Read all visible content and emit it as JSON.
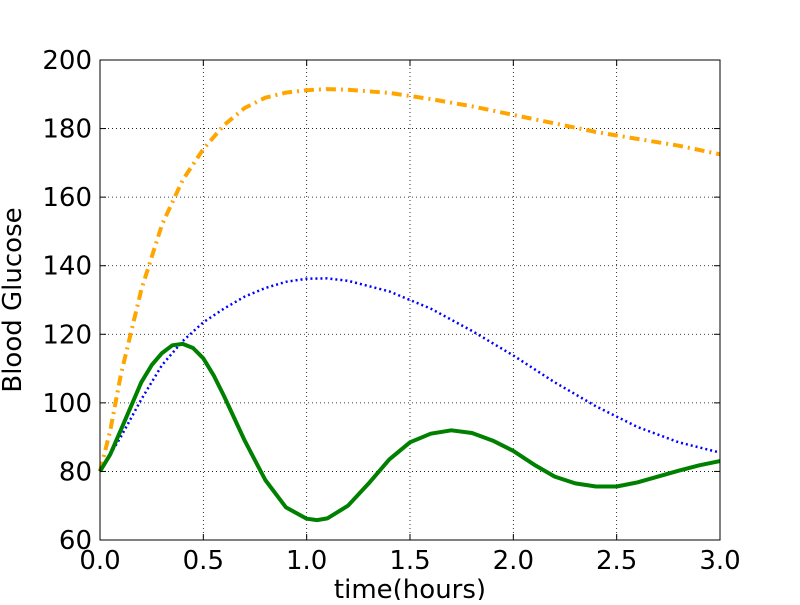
{
  "chart_data": {
    "type": "line",
    "title": "",
    "xlabel": "time(hours)",
    "ylabel": "Blood Glucose",
    "xlim": [
      0,
      3
    ],
    "ylim": [
      60,
      200
    ],
    "grid": true,
    "x_ticks": [
      0.0,
      0.5,
      1.0,
      1.5,
      2.0,
      2.5,
      3.0
    ],
    "x_tick_labels": [
      "0.0",
      "0.5",
      "1.0",
      "1.5",
      "2.0",
      "2.5",
      "3.0"
    ],
    "y_ticks": [
      60,
      80,
      100,
      120,
      140,
      160,
      180,
      200
    ],
    "y_tick_labels": [
      "60",
      "80",
      "100",
      "120",
      "140",
      "160",
      "180",
      "200"
    ],
    "series": [
      {
        "color": "#ffa500",
        "style": "dash-dot",
        "x": [
          0,
          0.05,
          0.1,
          0.2,
          0.3,
          0.4,
          0.5,
          0.6,
          0.7,
          0.8,
          0.9,
          1.0,
          1.1,
          1.2,
          1.4,
          1.6,
          1.8,
          2.0,
          2.2,
          2.4,
          2.6,
          2.8,
          3.0
        ],
        "values": [
          80,
          92,
          108,
          133,
          152,
          165,
          174,
          181,
          186,
          189,
          190.5,
          191.2,
          191.5,
          191.3,
          190.4,
          188.6,
          186.5,
          184,
          181.5,
          179,
          177,
          175,
          172.5
        ]
      },
      {
        "color": "#0000ff",
        "style": "dotted",
        "x": [
          0,
          0.1,
          0.2,
          0.3,
          0.4,
          0.5,
          0.6,
          0.7,
          0.8,
          0.9,
          1.0,
          1.1,
          1.2,
          1.4,
          1.6,
          1.8,
          2.0,
          2.2,
          2.4,
          2.6,
          2.8,
          3.0
        ],
        "values": [
          80,
          90,
          101,
          111,
          118,
          123.5,
          127.5,
          131,
          133.5,
          135.3,
          136.2,
          136.3,
          135.6,
          132.5,
          127.5,
          121,
          113.8,
          106,
          99,
          93,
          88.5,
          85.5
        ]
      },
      {
        "color": "#008000",
        "style": "solid",
        "x": [
          0,
          0.05,
          0.1,
          0.15,
          0.2,
          0.25,
          0.3,
          0.35,
          0.4,
          0.45,
          0.5,
          0.55,
          0.6,
          0.7,
          0.8,
          0.9,
          1.0,
          1.05,
          1.1,
          1.2,
          1.3,
          1.4,
          1.5,
          1.6,
          1.7,
          1.8,
          1.9,
          2.0,
          2.1,
          2.2,
          2.3,
          2.4,
          2.5,
          2.6,
          2.7,
          2.8,
          2.9,
          3.0
        ],
        "values": [
          80,
          85,
          92,
          99,
          106,
          111,
          114.5,
          116.8,
          117.2,
          116,
          113,
          108,
          102,
          89,
          77.5,
          69.5,
          66.2,
          65.8,
          66.3,
          70,
          76.5,
          83.5,
          88.5,
          91,
          92,
          91.2,
          89,
          86,
          82,
          78.5,
          76.5,
          75.6,
          75.6,
          76.8,
          78.5,
          80.2,
          81.8,
          83
        ]
      }
    ]
  }
}
